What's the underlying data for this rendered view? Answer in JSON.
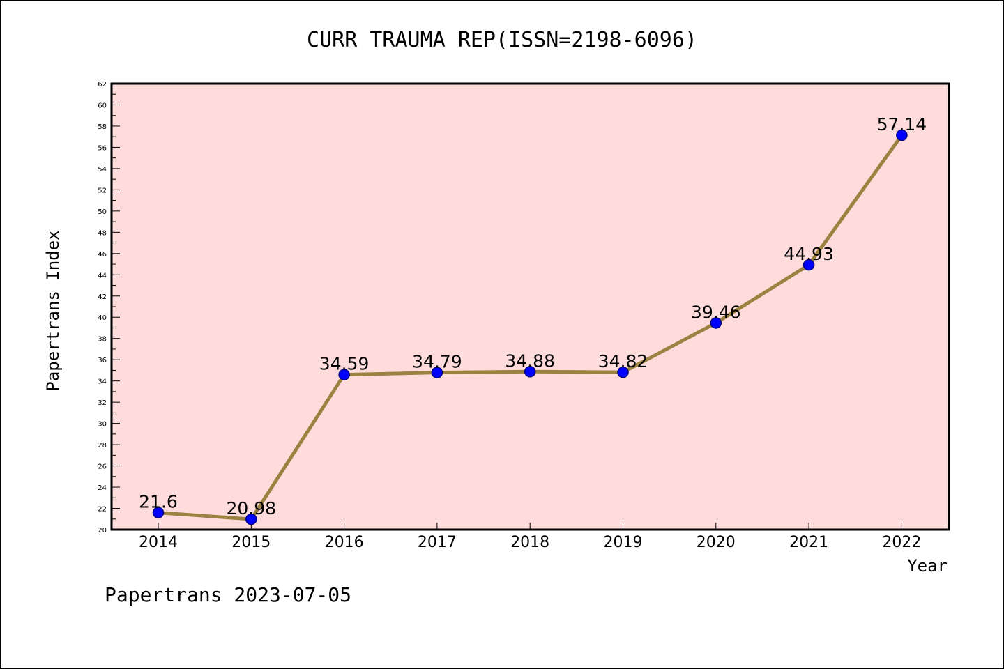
{
  "footer": "Papertrans 2023-07-05",
  "colors": {
    "plot_background": "#ffdcdc",
    "line": "#9a8340",
    "marker_fill": "#0000ff",
    "marker_stroke": "#000080",
    "axis": "#000000"
  },
  "chart_data": {
    "type": "line",
    "title": "CURR TRAUMA REP(ISSN=2198-6096)",
    "xlabel": "Year",
    "ylabel": "Papertrans Index",
    "categories": [
      "2014",
      "2015",
      "2016",
      "2017",
      "2018",
      "2019",
      "2020",
      "2021",
      "2022"
    ],
    "series": [
      {
        "values": [
          21.6,
          20.98,
          34.59,
          34.79,
          34.88,
          34.82,
          39.46,
          44.93,
          57.14
        ],
        "labels": [
          "21.6",
          "20.98",
          "34.59",
          "34.79",
          "34.88",
          "34.82",
          "39.46",
          "44.93",
          "57.14"
        ]
      }
    ],
    "ylim": [
      20,
      62
    ],
    "ytick_step": 2,
    "grid": false,
    "legend": "none"
  }
}
